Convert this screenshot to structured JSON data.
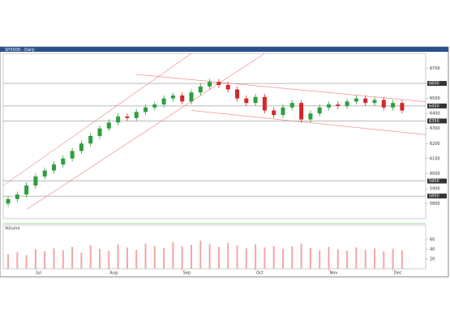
{
  "chart_data": {
    "type": "candlestick",
    "title": "SPX500 - Daily",
    "categories": [
      null,
      null,
      null,
      "Jul",
      null,
      null,
      null,
      null,
      null,
      null,
      null,
      "Aug",
      null,
      null,
      null,
      null,
      null,
      null,
      null,
      "Sep",
      null,
      null,
      null,
      null,
      null,
      null,
      null,
      "Oct",
      null,
      null,
      null,
      null,
      null,
      null,
      null,
      "Nov",
      null,
      null,
      null,
      null,
      null,
      null,
      "Dec",
      null
    ],
    "open": [
      5800,
      5830,
      5860,
      5920,
      5980,
      6020,
      6060,
      6100,
      6150,
      6200,
      6250,
      6300,
      6340,
      6380,
      6370,
      6410,
      6440,
      6460,
      6500,
      6520,
      6480,
      6540,
      6580,
      6610,
      6590,
      6560,
      6500,
      6470,
      6510,
      6420,
      6390,
      6440,
      6470,
      6360,
      6400,
      6440,
      6460,
      6450,
      6480,
      6500,
      6470,
      6490,
      6440,
      6470
    ],
    "high": [
      5850,
      5880,
      5940,
      6000,
      6040,
      6080,
      6120,
      6170,
      6220,
      6270,
      6320,
      6360,
      6400,
      6400,
      6430,
      6460,
      6480,
      6520,
      6540,
      6540,
      6560,
      6600,
      6630,
      6630,
      6610,
      6580,
      6520,
      6530,
      6530,
      6440,
      6460,
      6490,
      6490,
      6420,
      6460,
      6480,
      6480,
      6500,
      6520,
      6520,
      6510,
      6510,
      6490,
      6490
    ],
    "low": [
      5780,
      5810,
      5840,
      5900,
      5960,
      6000,
      6040,
      6080,
      6130,
      6180,
      6230,
      6280,
      6320,
      6350,
      6350,
      6390,
      6420,
      6440,
      6480,
      6460,
      6460,
      6520,
      6560,
      6570,
      6540,
      6480,
      6450,
      6450,
      6400,
      6370,
      6370,
      6420,
      6340,
      6340,
      6380,
      6420,
      6430,
      6430,
      6460,
      6450,
      6450,
      6420,
      6420,
      6400
    ],
    "close": [
      5830,
      5860,
      5920,
      5980,
      6020,
      6060,
      6100,
      6150,
      6200,
      6250,
      6300,
      6340,
      6380,
      6370,
      6410,
      6440,
      6460,
      6500,
      6520,
      6480,
      6540,
      6580,
      6610,
      6590,
      6560,
      6500,
      6470,
      6510,
      6420,
      6390,
      6440,
      6470,
      6360,
      6400,
      6440,
      6460,
      6450,
      6480,
      6500,
      6470,
      6490,
      6440,
      6470,
      6420
    ],
    "volume": [
      30,
      34,
      28,
      40,
      36,
      42,
      38,
      45,
      33,
      48,
      41,
      37,
      50,
      44,
      39,
      52,
      47,
      43,
      55,
      46,
      49,
      58,
      51,
      45,
      53,
      48,
      42,
      50,
      44,
      47,
      41,
      46,
      52,
      43,
      38,
      45,
      40,
      37,
      44,
      39,
      42,
      36,
      41,
      38
    ],
    "up_color": "#2e9e3e",
    "down_color": "#d62728",
    "ylim": [
      5700,
      6800
    ],
    "yticks": [
      5800,
      5900,
      6000,
      6100,
      6200,
      6300,
      6400,
      6500,
      6600,
      6700
    ],
    "volume_label": "Volume",
    "volume_ylim": [
      0,
      80
    ],
    "volume_yticks": [
      20,
      40,
      60
    ],
    "levels": [
      6600,
      6450,
      6350,
      5950,
      5850
    ],
    "trend_lines": [
      {
        "from": [
          -1,
          5900
        ],
        "to": [
          20,
          6800
        ]
      },
      {
        "from": [
          2,
          5760
        ],
        "to": [
          28,
          6800
        ]
      },
      {
        "from": [
          14,
          6660
        ],
        "to": [
          47,
          6470
        ]
      },
      {
        "from": [
          20,
          6420
        ],
        "to": [
          47,
          6250
        ]
      }
    ]
  }
}
